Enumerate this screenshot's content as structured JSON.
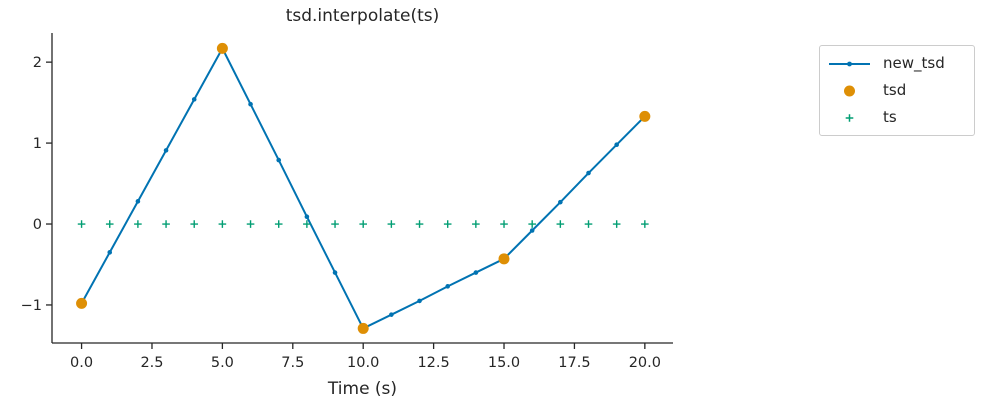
{
  "chart_data": {
    "type": "line",
    "title": "tsd.interpolate(ts)",
    "xlabel": "Time (s)",
    "ylabel": "",
    "xlim": [
      -1.05,
      21.0
    ],
    "ylim": [
      -1.47,
      2.36
    ],
    "grid": false,
    "style": "seaborn-ticks-despined",
    "axis_color": "#262626",
    "text_color": "#262626",
    "x_ticks": [
      0,
      2.5,
      5,
      7.5,
      10,
      12.5,
      15,
      17.5,
      20
    ],
    "x_tick_labels": [
      "0.0",
      "2.5",
      "5.0",
      "7.5",
      "10.0",
      "12.5",
      "15.0",
      "17.5",
      "20.0"
    ],
    "y_ticks": [
      -1,
      0,
      1,
      2
    ],
    "y_tick_labels": [
      "−1",
      "0",
      "1",
      "2"
    ],
    "legend_position": "outside-upper-right",
    "series": [
      {
        "name": "new_tsd",
        "type": "line",
        "marker": "dot",
        "color": "#0173b2",
        "x": [
          0,
          1,
          2,
          3,
          4,
          5,
          6,
          7,
          8,
          9,
          10,
          11,
          12,
          13,
          14,
          15,
          16,
          17,
          18,
          19,
          20
        ],
        "y": [
          -0.98,
          -0.35,
          0.28,
          0.91,
          1.54,
          2.17,
          1.48,
          0.79,
          0.09,
          -0.6,
          -1.29,
          -1.12,
          -0.95,
          -0.77,
          -0.6,
          -0.43,
          -0.08,
          0.27,
          0.63,
          0.98,
          1.33
        ]
      },
      {
        "name": "tsd",
        "type": "scatter",
        "marker": "circle",
        "color": "#de8f05",
        "x": [
          0,
          5,
          10,
          15,
          20
        ],
        "y": [
          -0.98,
          2.17,
          -1.29,
          -0.43,
          1.33
        ]
      },
      {
        "name": "ts",
        "type": "scatter",
        "marker": "plus",
        "color": "#029e73",
        "x": [
          0,
          1,
          2,
          3,
          4,
          5,
          6,
          7,
          8,
          9,
          10,
          11,
          12,
          13,
          14,
          15,
          16,
          17,
          18,
          19,
          20
        ],
        "y": [
          0,
          0,
          0,
          0,
          0,
          0,
          0,
          0,
          0,
          0,
          0,
          0,
          0,
          0,
          0,
          0,
          0,
          0,
          0,
          0,
          0
        ]
      }
    ]
  }
}
